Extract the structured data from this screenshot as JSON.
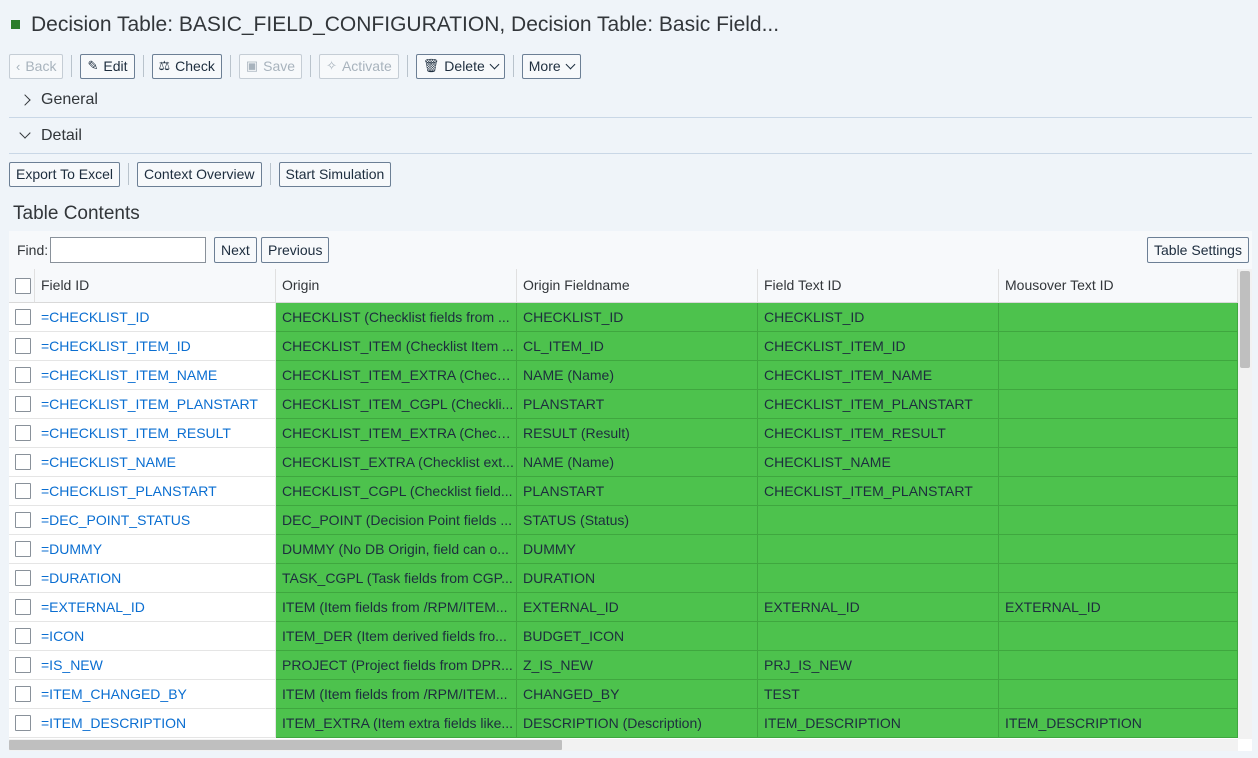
{
  "title": "Decision Table: BASIC_FIELD_CONFIGURATION, Decision Table: Basic Field...",
  "toolbar": {
    "back": "Back",
    "edit": "Edit",
    "check": "Check",
    "save": "Save",
    "activate": "Activate",
    "delete": "Delete",
    "more": "More"
  },
  "sections": {
    "general": "General",
    "detail": "Detail"
  },
  "detail_toolbar": {
    "export": "Export To Excel",
    "context": "Context Overview",
    "simulation": "Start Simulation"
  },
  "table_contents": {
    "title": "Table Contents",
    "find_label": "Find:",
    "find_value": "",
    "next": "Next",
    "previous": "Previous",
    "settings": "Table Settings"
  },
  "columns": [
    "Field ID",
    "Origin",
    "Origin Fieldname",
    "Field Text ID",
    "Mousover Text ID"
  ],
  "rows": [
    {
      "id": "=CHECKLIST_ID",
      "origin": "CHECKLIST (Checklist fields from ...",
      "fieldname": "CHECKLIST_ID",
      "text_id": "CHECKLIST_ID",
      "mouse_id": ""
    },
    {
      "id": "=CHECKLIST_ITEM_ID",
      "origin": "CHECKLIST_ITEM (Checklist Item ...",
      "fieldname": "CL_ITEM_ID",
      "text_id": "CHECKLIST_ITEM_ID",
      "mouse_id": ""
    },
    {
      "id": "=CHECKLIST_ITEM_NAME",
      "origin": "CHECKLIST_ITEM_EXTRA (Checkl...",
      "fieldname": "NAME (Name)",
      "text_id": "CHECKLIST_ITEM_NAME",
      "mouse_id": ""
    },
    {
      "id": "=CHECKLIST_ITEM_PLANSTART",
      "origin": "CHECKLIST_ITEM_CGPL (Checkli...",
      "fieldname": "PLANSTART",
      "text_id": "CHECKLIST_ITEM_PLANSTART",
      "mouse_id": ""
    },
    {
      "id": "=CHECKLIST_ITEM_RESULT",
      "origin": "CHECKLIST_ITEM_EXTRA (Checkl...",
      "fieldname": "RESULT (Result)",
      "text_id": "CHECKLIST_ITEM_RESULT",
      "mouse_id": ""
    },
    {
      "id": "=CHECKLIST_NAME",
      "origin": "CHECKLIST_EXTRA (Checklist ext...",
      "fieldname": "NAME (Name)",
      "text_id": "CHECKLIST_NAME",
      "mouse_id": ""
    },
    {
      "id": "=CHECKLIST_PLANSTART",
      "origin": "CHECKLIST_CGPL (Checklist field...",
      "fieldname": "PLANSTART",
      "text_id": "CHECKLIST_ITEM_PLANSTART",
      "mouse_id": ""
    },
    {
      "id": "=DEC_POINT_STATUS",
      "origin": "DEC_POINT (Decision Point fields ...",
      "fieldname": "STATUS (Status)",
      "text_id": "",
      "mouse_id": ""
    },
    {
      "id": "=DUMMY",
      "origin": "DUMMY (No DB Origin, field can o...",
      "fieldname": "DUMMY",
      "text_id": "",
      "mouse_id": ""
    },
    {
      "id": "=DURATION",
      "origin": "TASK_CGPL (Task fields from CGP...",
      "fieldname": "DURATION",
      "text_id": "",
      "mouse_id": ""
    },
    {
      "id": "=EXTERNAL_ID",
      "origin": "ITEM (Item fields from /RPM/ITEM...",
      "fieldname": "EXTERNAL_ID",
      "text_id": "EXTERNAL_ID",
      "mouse_id": "EXTERNAL_ID"
    },
    {
      "id": "=ICON",
      "origin": "ITEM_DER (Item derived fields fro...",
      "fieldname": "BUDGET_ICON",
      "text_id": "",
      "mouse_id": ""
    },
    {
      "id": "=IS_NEW",
      "origin": "PROJECT (Project fields from DPR...",
      "fieldname": "Z_IS_NEW",
      "text_id": "PRJ_IS_NEW",
      "mouse_id": ""
    },
    {
      "id": "=ITEM_CHANGED_BY",
      "origin": "ITEM (Item fields from /RPM/ITEM...",
      "fieldname": "CHANGED_BY",
      "text_id": "TEST",
      "mouse_id": ""
    },
    {
      "id": "=ITEM_DESCRIPTION",
      "origin": "ITEM_EXTRA (Item extra fields like...",
      "fieldname": "DESCRIPTION (Description)",
      "text_id": "ITEM_DESCRIPTION",
      "mouse_id": "ITEM_DESCRIPTION"
    }
  ],
  "colors": {
    "highlight": "#4dc24d",
    "link": "#0a6ed1",
    "status_marker": "#2b7d2b"
  }
}
